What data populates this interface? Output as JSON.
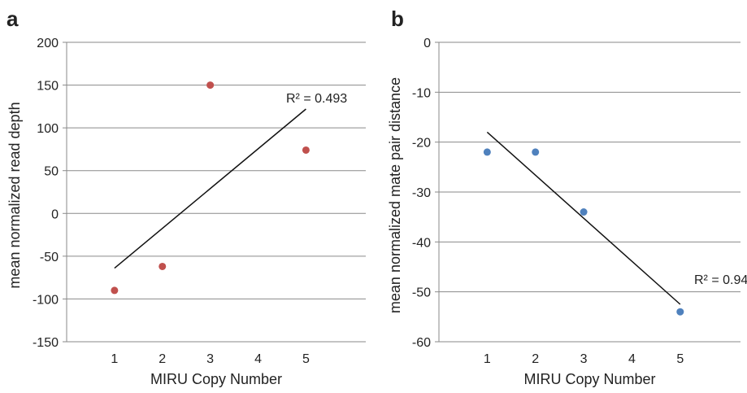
{
  "chart_data": [
    {
      "panel_label": "a",
      "type": "scatter",
      "xlabel": "MIRU Copy Number",
      "ylabel": "mean normalized read depth",
      "x_ticks": [
        "1",
        "2",
        "3",
        "4",
        "5"
      ],
      "ylim": [
        -150,
        200
      ],
      "y_ticks": [
        "-150",
        "-100",
        "-50",
        "0",
        "50",
        "100",
        "150",
        "200"
      ],
      "grid": true,
      "marker_color": "#c0504d",
      "points": [
        {
          "x": 1,
          "y": -90
        },
        {
          "x": 2,
          "y": -62
        },
        {
          "x": 3,
          "y": 150
        },
        {
          "x": 5,
          "y": 74
        }
      ],
      "trendline": {
        "x": [
          1,
          5
        ],
        "y": [
          -64,
          122
        ],
        "label": "R² = 0.493"
      }
    },
    {
      "panel_label": "b",
      "type": "scatter",
      "xlabel": "MIRU Copy Number",
      "ylabel": "mean normalized mate pair distance",
      "x_ticks": [
        "1",
        "2",
        "3",
        "4",
        "5"
      ],
      "ylim": [
        -60,
        0
      ],
      "y_ticks": [
        "-60",
        "-50",
        "-40",
        "-30",
        "-20",
        "-10",
        "0"
      ],
      "grid": true,
      "marker_color": "#4f81bd",
      "points": [
        {
          "x": 1,
          "y": -22
        },
        {
          "x": 2,
          "y": -22
        },
        {
          "x": 3,
          "y": -34
        },
        {
          "x": 5,
          "y": -54
        }
      ],
      "trendline": {
        "x": [
          1,
          5
        ],
        "y": [
          -18,
          -52.5
        ],
        "label": "R² = 0.940"
      }
    }
  ]
}
